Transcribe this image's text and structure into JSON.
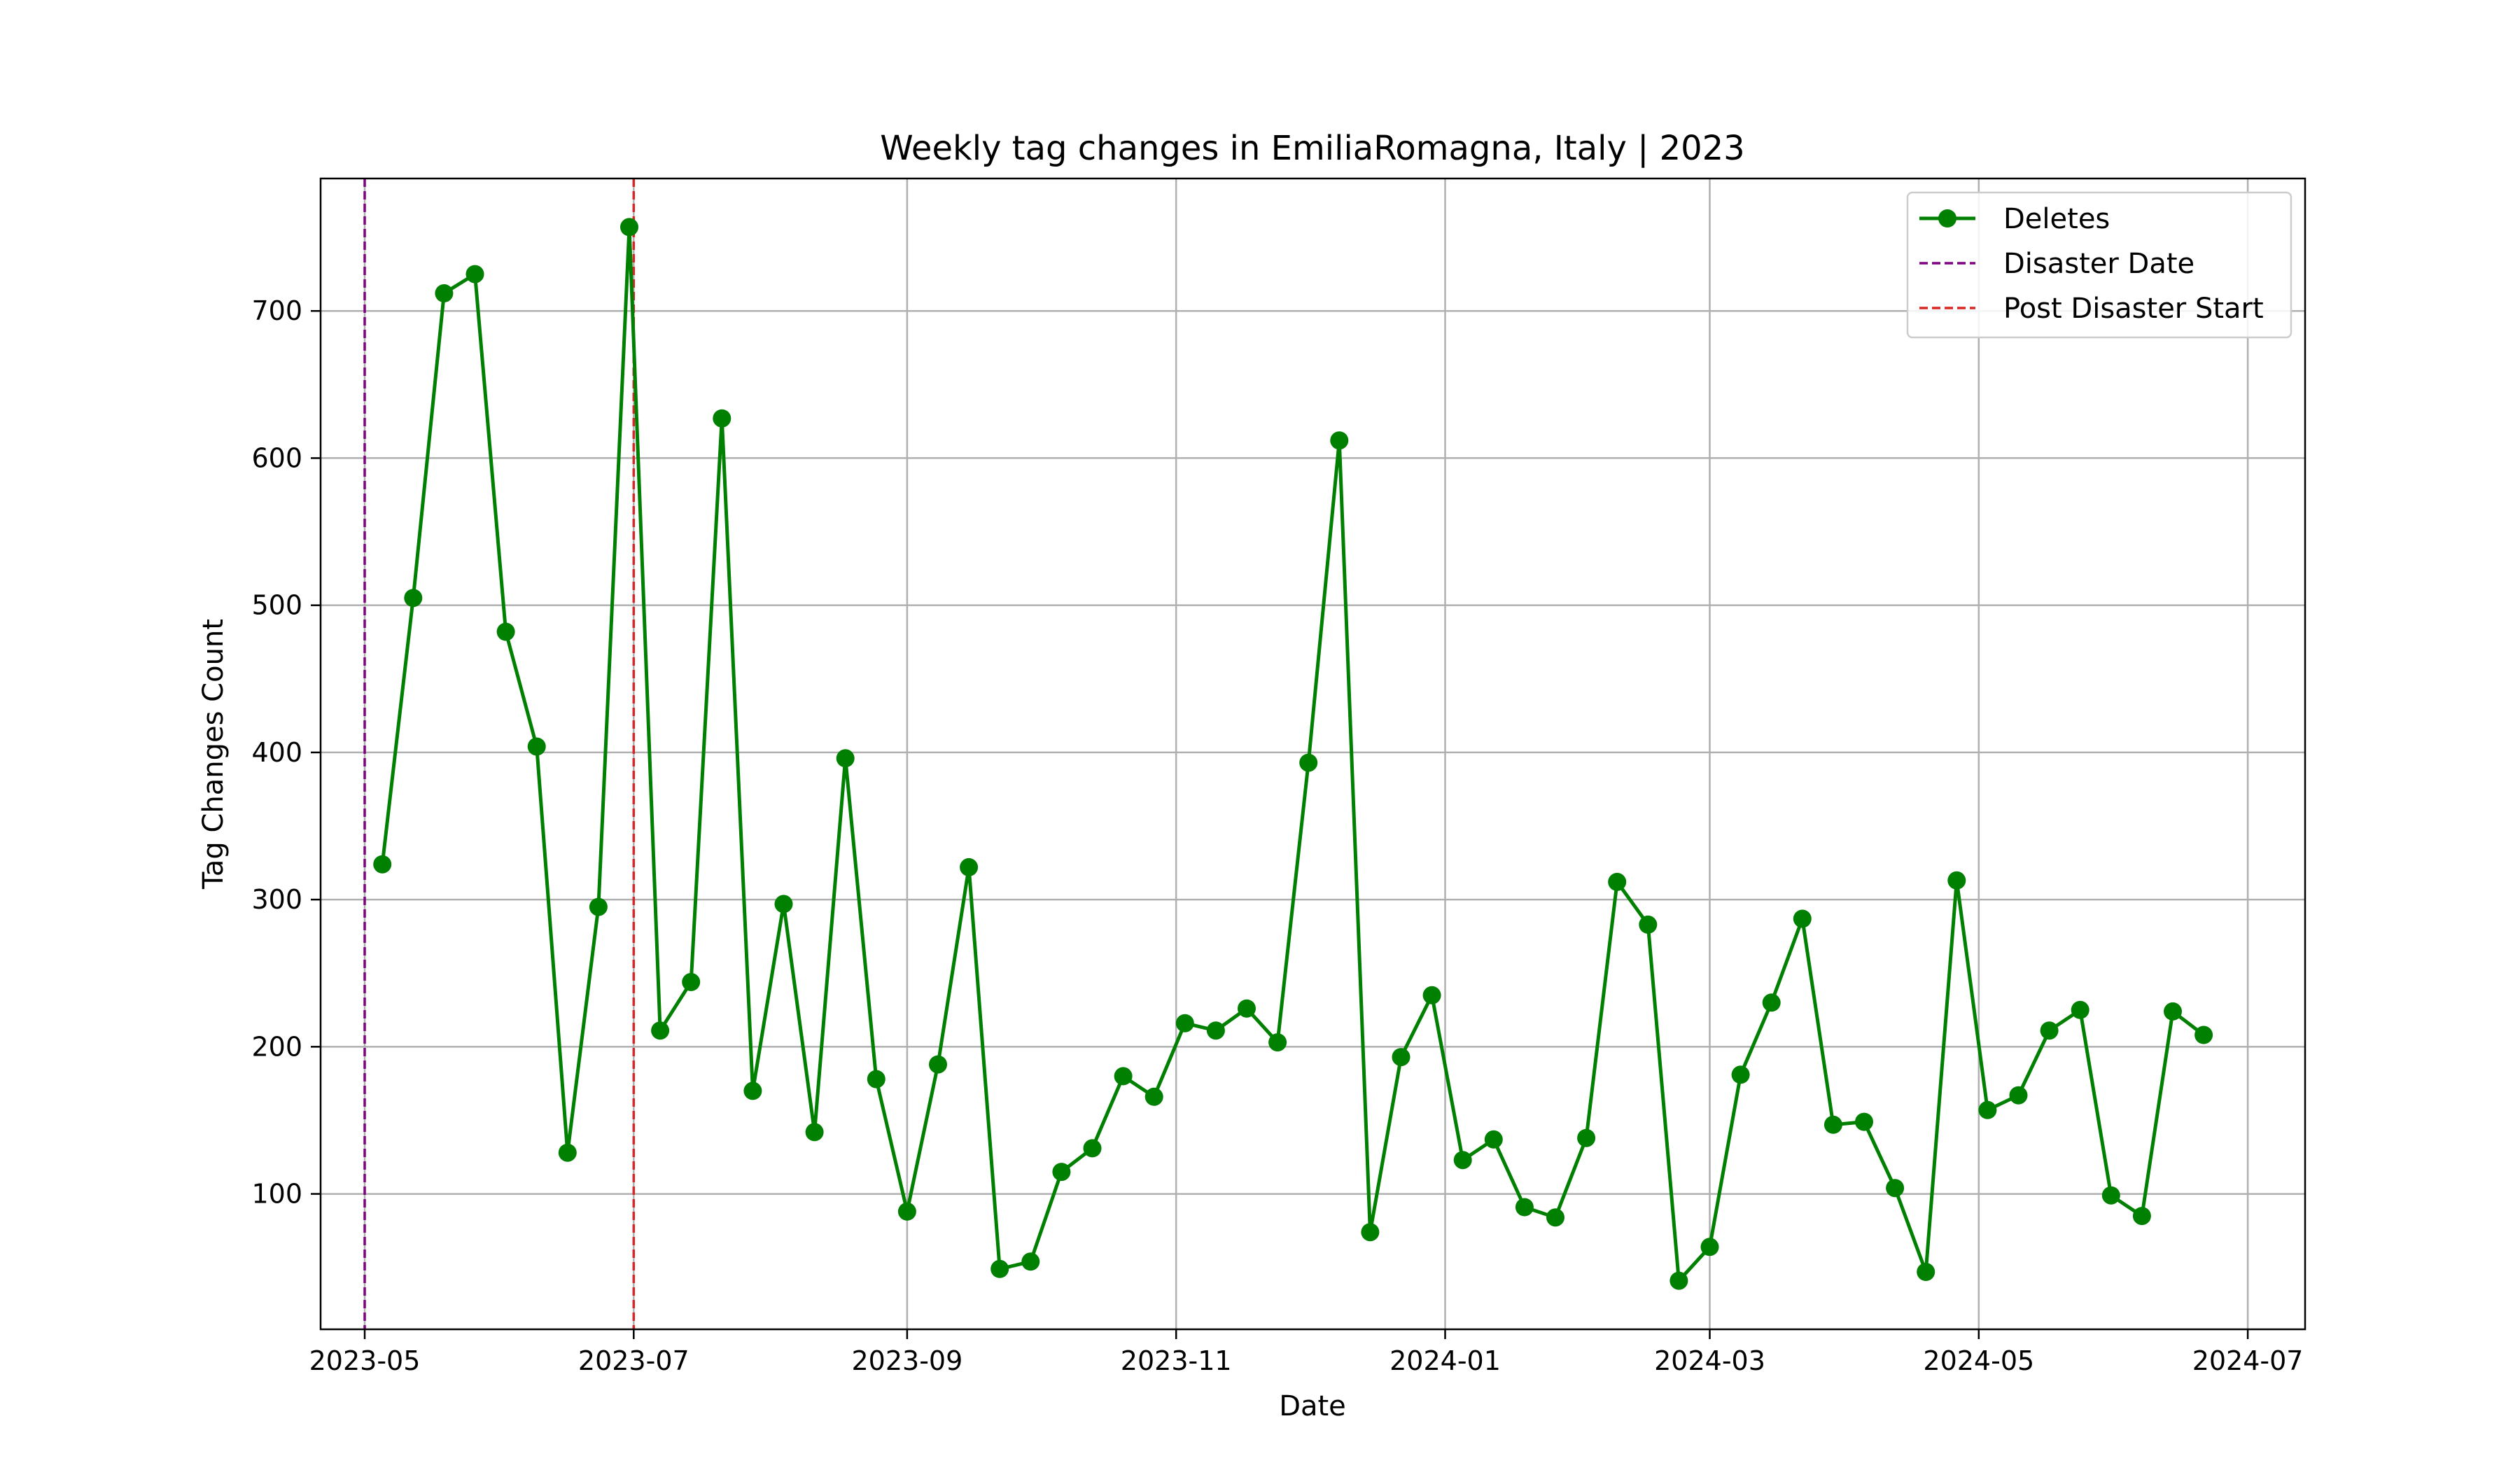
{
  "chart_data": {
    "type": "line",
    "title": "Weekly tag changes in EmiliaRomagna, Italy | 2023",
    "xlabel": "Date",
    "ylabel": "Tag Changes Count",
    "x_axis_type": "date",
    "xlim": [
      "2023-04-21",
      "2024-07-14"
    ],
    "ylim": [
      8,
      790
    ],
    "x_ticks": [
      "2023-05-01",
      "2023-07-01",
      "2023-09-01",
      "2023-11-01",
      "2024-01-01",
      "2024-03-01",
      "2024-05-01",
      "2024-07-01"
    ],
    "x_tick_labels": [
      "2023-05",
      "2023-07",
      "2023-09",
      "2023-11",
      "2024-01",
      "2024-03",
      "2024-05",
      "2024-07"
    ],
    "y_ticks": [
      100,
      200,
      300,
      400,
      500,
      600,
      700
    ],
    "grid": true,
    "legend_position": "top-right",
    "series": [
      {
        "name": "Deletes",
        "color": "#008000",
        "marker": "circle",
        "x": [
          "2023-05-05",
          "2023-05-12",
          "2023-05-19",
          "2023-05-26",
          "2023-06-02",
          "2023-06-09",
          "2023-06-16",
          "2023-06-23",
          "2023-06-30",
          "2023-07-07",
          "2023-07-14",
          "2023-07-21",
          "2023-07-28",
          "2023-08-04",
          "2023-08-11",
          "2023-08-18",
          "2023-08-25",
          "2023-09-01",
          "2023-09-08",
          "2023-09-15",
          "2023-09-22",
          "2023-09-29",
          "2023-10-06",
          "2023-10-13",
          "2023-10-20",
          "2023-10-27",
          "2023-11-03",
          "2023-11-10",
          "2023-11-17",
          "2023-11-24",
          "2023-12-01",
          "2023-12-08",
          "2023-12-15",
          "2023-12-22",
          "2023-12-29",
          "2024-01-05",
          "2024-01-12",
          "2024-01-19",
          "2024-01-26",
          "2024-02-02",
          "2024-02-09",
          "2024-02-16",
          "2024-02-23",
          "2024-03-01",
          "2024-03-08",
          "2024-03-15",
          "2024-03-22",
          "2024-03-29",
          "2024-04-05",
          "2024-04-12",
          "2024-04-19",
          "2024-04-26",
          "2024-05-03",
          "2024-05-10",
          "2024-05-17",
          "2024-05-24",
          "2024-05-31",
          "2024-06-07",
          "2024-06-14",
          "2024-06-21"
        ],
        "values": [
          324,
          505,
          712,
          725,
          482,
          404,
          128,
          295,
          757,
          211,
          244,
          627,
          170,
          297,
          142,
          396,
          178,
          88,
          188,
          322,
          49,
          54,
          115,
          131,
          180,
          166,
          216,
          211,
          226,
          203,
          393,
          612,
          74,
          193,
          235,
          123,
          137,
          91,
          84,
          138,
          312,
          283,
          41,
          64,
          181,
          230,
          287,
          147,
          149,
          104,
          47,
          313,
          157,
          167,
          211,
          225,
          99,
          85,
          224,
          208
        ]
      },
      {
        "name": "Disaster Date",
        "type": "vline",
        "x": "2023-05-01",
        "color": "#800080",
        "style": "dashed"
      },
      {
        "name": "Post Disaster Start",
        "type": "vline",
        "x": "2023-07-01",
        "color": "#d62728",
        "style": "dashed"
      }
    ]
  }
}
